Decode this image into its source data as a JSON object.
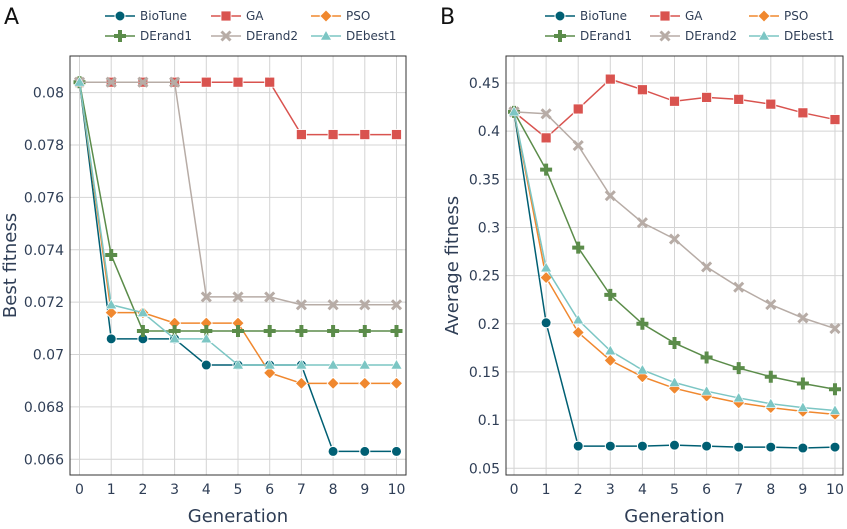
{
  "chart_data": [
    {
      "type": "line",
      "panel_label": "A",
      "title": "",
      "xlabel": "Generation",
      "ylabel": "Best fitness",
      "x": [
        0,
        1,
        2,
        3,
        4,
        5,
        6,
        7,
        8,
        9,
        10
      ],
      "x_ticks": [
        "0",
        "1",
        "2",
        "3",
        "4",
        "5",
        "6",
        "7",
        "8",
        "9",
        "10"
      ],
      "y_ticks": [
        0.066,
        0.068,
        0.07,
        0.072,
        0.074,
        0.076,
        0.078,
        0.08
      ],
      "y_tick_labels": [
        "0.066",
        "0.068",
        "0.07",
        "0.072",
        "0.074",
        "0.076",
        "0.078",
        "0.08"
      ],
      "xlim": [
        -0.3,
        10.3
      ],
      "ylim": [
        0.0654,
        0.0814
      ],
      "grid": true,
      "legend_position": "top",
      "series": [
        {
          "name": "BioTune",
          "color": "#005f73",
          "marker": "circle",
          "values": [
            0.0804,
            0.0706,
            0.0706,
            0.0706,
            0.0696,
            0.0696,
            0.0696,
            0.0696,
            0.0663,
            0.0663,
            0.0663
          ]
        },
        {
          "name": "GA",
          "color": "#d9534f",
          "marker": "square",
          "values": [
            0.0804,
            0.0804,
            0.0804,
            0.0804,
            0.0804,
            0.0804,
            0.0804,
            0.0784,
            0.0784,
            0.0784,
            0.0784
          ]
        },
        {
          "name": "PSO",
          "color": "#f0882f",
          "marker": "diamond",
          "values": [
            0.0804,
            0.0716,
            0.0716,
            0.0712,
            0.0712,
            0.0712,
            0.0693,
            0.0689,
            0.0689,
            0.0689,
            0.0689
          ]
        },
        {
          "name": "DErand1",
          "color": "#5b8c4a",
          "marker": "cross",
          "values": [
            0.0804,
            0.0738,
            0.0709,
            0.0709,
            0.0709,
            0.0709,
            0.0709,
            0.0709,
            0.0709,
            0.0709,
            0.0709
          ]
        },
        {
          "name": "DErand2",
          "color": "#b7aca6",
          "marker": "x",
          "values": [
            0.0804,
            0.0804,
            0.0804,
            0.0804,
            0.0722,
            0.0722,
            0.0722,
            0.0719,
            0.0719,
            0.0719,
            0.0719
          ]
        },
        {
          "name": "DEbest1",
          "color": "#7cc6c4",
          "marker": "triangle",
          "values": [
            0.0804,
            0.0719,
            0.0716,
            0.0706,
            0.0706,
            0.0696,
            0.0696,
            0.0696,
            0.0696,
            0.0696,
            0.0696
          ]
        }
      ]
    },
    {
      "type": "line",
      "panel_label": "B",
      "title": "",
      "xlabel": "Generation",
      "ylabel": "Average fitness",
      "x": [
        0,
        1,
        2,
        3,
        4,
        5,
        6,
        7,
        8,
        9,
        10
      ],
      "x_ticks": [
        "0",
        "1",
        "2",
        "3",
        "4",
        "5",
        "6",
        "7",
        "8",
        "9",
        "10"
      ],
      "y_ticks": [
        0.05,
        0.1,
        0.15,
        0.2,
        0.25,
        0.3,
        0.35,
        0.4,
        0.45
      ],
      "y_tick_labels": [
        "0.05",
        "0.1",
        "0.15",
        "0.2",
        "0.25",
        "0.3",
        "0.35",
        "0.4",
        "0.45"
      ],
      "xlim": [
        -0.25,
        10.25
      ],
      "ylim": [
        0.043,
        0.478
      ],
      "grid": true,
      "legend_position": "top",
      "series": [
        {
          "name": "BioTune",
          "color": "#005f73",
          "marker": "circle",
          "values": [
            0.42,
            0.201,
            0.073,
            0.073,
            0.073,
            0.074,
            0.073,
            0.072,
            0.072,
            0.071,
            0.072
          ]
        },
        {
          "name": "GA",
          "color": "#d9534f",
          "marker": "square",
          "values": [
            0.42,
            0.393,
            0.423,
            0.454,
            0.443,
            0.431,
            0.435,
            0.433,
            0.428,
            0.419,
            0.412
          ]
        },
        {
          "name": "PSO",
          "color": "#f0882f",
          "marker": "diamond",
          "values": [
            0.42,
            0.248,
            0.191,
            0.162,
            0.145,
            0.133,
            0.125,
            0.118,
            0.113,
            0.109,
            0.106
          ]
        },
        {
          "name": "DErand1",
          "color": "#5b8c4a",
          "marker": "cross",
          "values": [
            0.42,
            0.36,
            0.279,
            0.23,
            0.2,
            0.18,
            0.165,
            0.154,
            0.145,
            0.138,
            0.132
          ]
        },
        {
          "name": "DErand2",
          "color": "#b7aca6",
          "marker": "x",
          "values": [
            0.42,
            0.418,
            0.385,
            0.333,
            0.305,
            0.288,
            0.259,
            0.238,
            0.22,
            0.206,
            0.195
          ]
        },
        {
          "name": "DEbest1",
          "color": "#7cc6c4",
          "marker": "triangle",
          "values": [
            0.42,
            0.258,
            0.204,
            0.172,
            0.152,
            0.139,
            0.13,
            0.123,
            0.117,
            0.113,
            0.11
          ]
        }
      ]
    }
  ]
}
